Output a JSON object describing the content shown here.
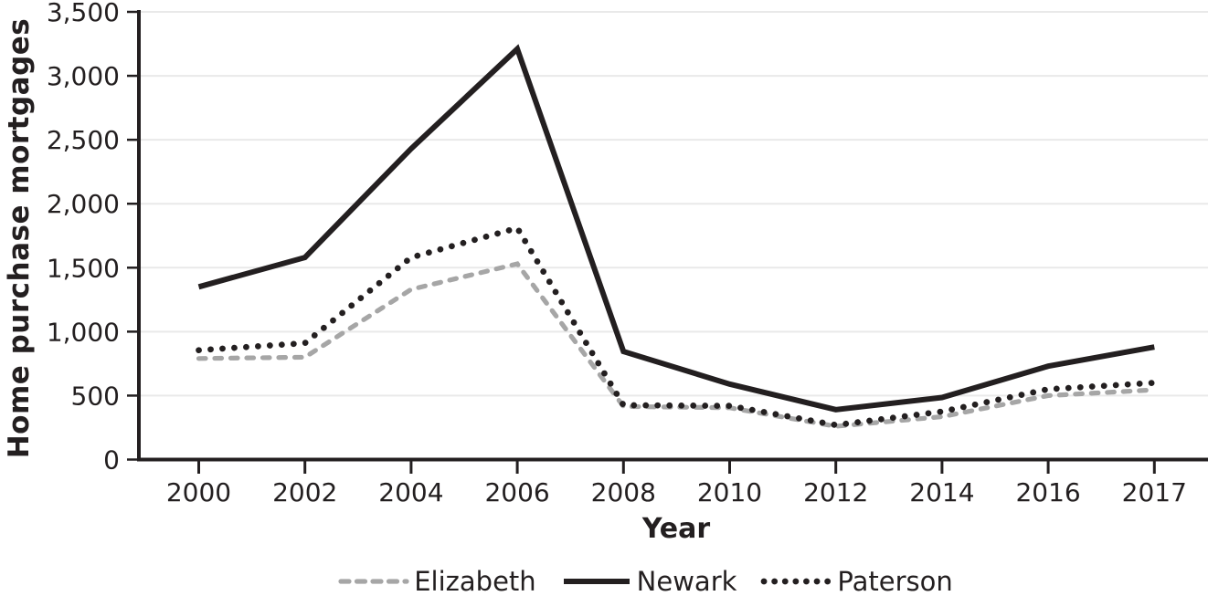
{
  "figure": {
    "background_color": "#ffffff",
    "text_color": "#231f20",
    "axis_color": "#231f20",
    "gridline_color": "#e9e9e9"
  },
  "chart_data": {
    "type": "line",
    "title": "",
    "xlabel": "Year",
    "ylabel": "Home purchase mortgages",
    "x_categories": [
      "2000",
      "2002",
      "2004",
      "2006",
      "2008",
      "2010",
      "2012",
      "2014",
      "2016",
      "2017"
    ],
    "y_ticks": [
      0,
      500,
      1000,
      1500,
      2000,
      2500,
      3000,
      3500
    ],
    "y_tick_labels": [
      "0",
      "500",
      "1,000",
      "1,500",
      "2,000",
      "2,500",
      "3,000",
      "3,500"
    ],
    "ylim": [
      0,
      3500
    ],
    "grid": "horizontal",
    "legend_position": "bottom",
    "series": [
      {
        "name": "Elizabeth",
        "color": "#a6a6a6",
        "line_style": "dashed",
        "values": [
          790,
          800,
          1330,
          1530,
          415,
          405,
          260,
          335,
          500,
          545
        ]
      },
      {
        "name": "Newark",
        "color": "#231f20",
        "line_style": "solid",
        "values": [
          1350,
          1580,
          2430,
          3210,
          845,
          590,
          390,
          485,
          730,
          880
        ]
      },
      {
        "name": "Paterson",
        "color": "#231f20",
        "line_style": "dotted",
        "values": [
          855,
          910,
          1580,
          1810,
          425,
          420,
          270,
          375,
          550,
          600
        ]
      }
    ]
  }
}
